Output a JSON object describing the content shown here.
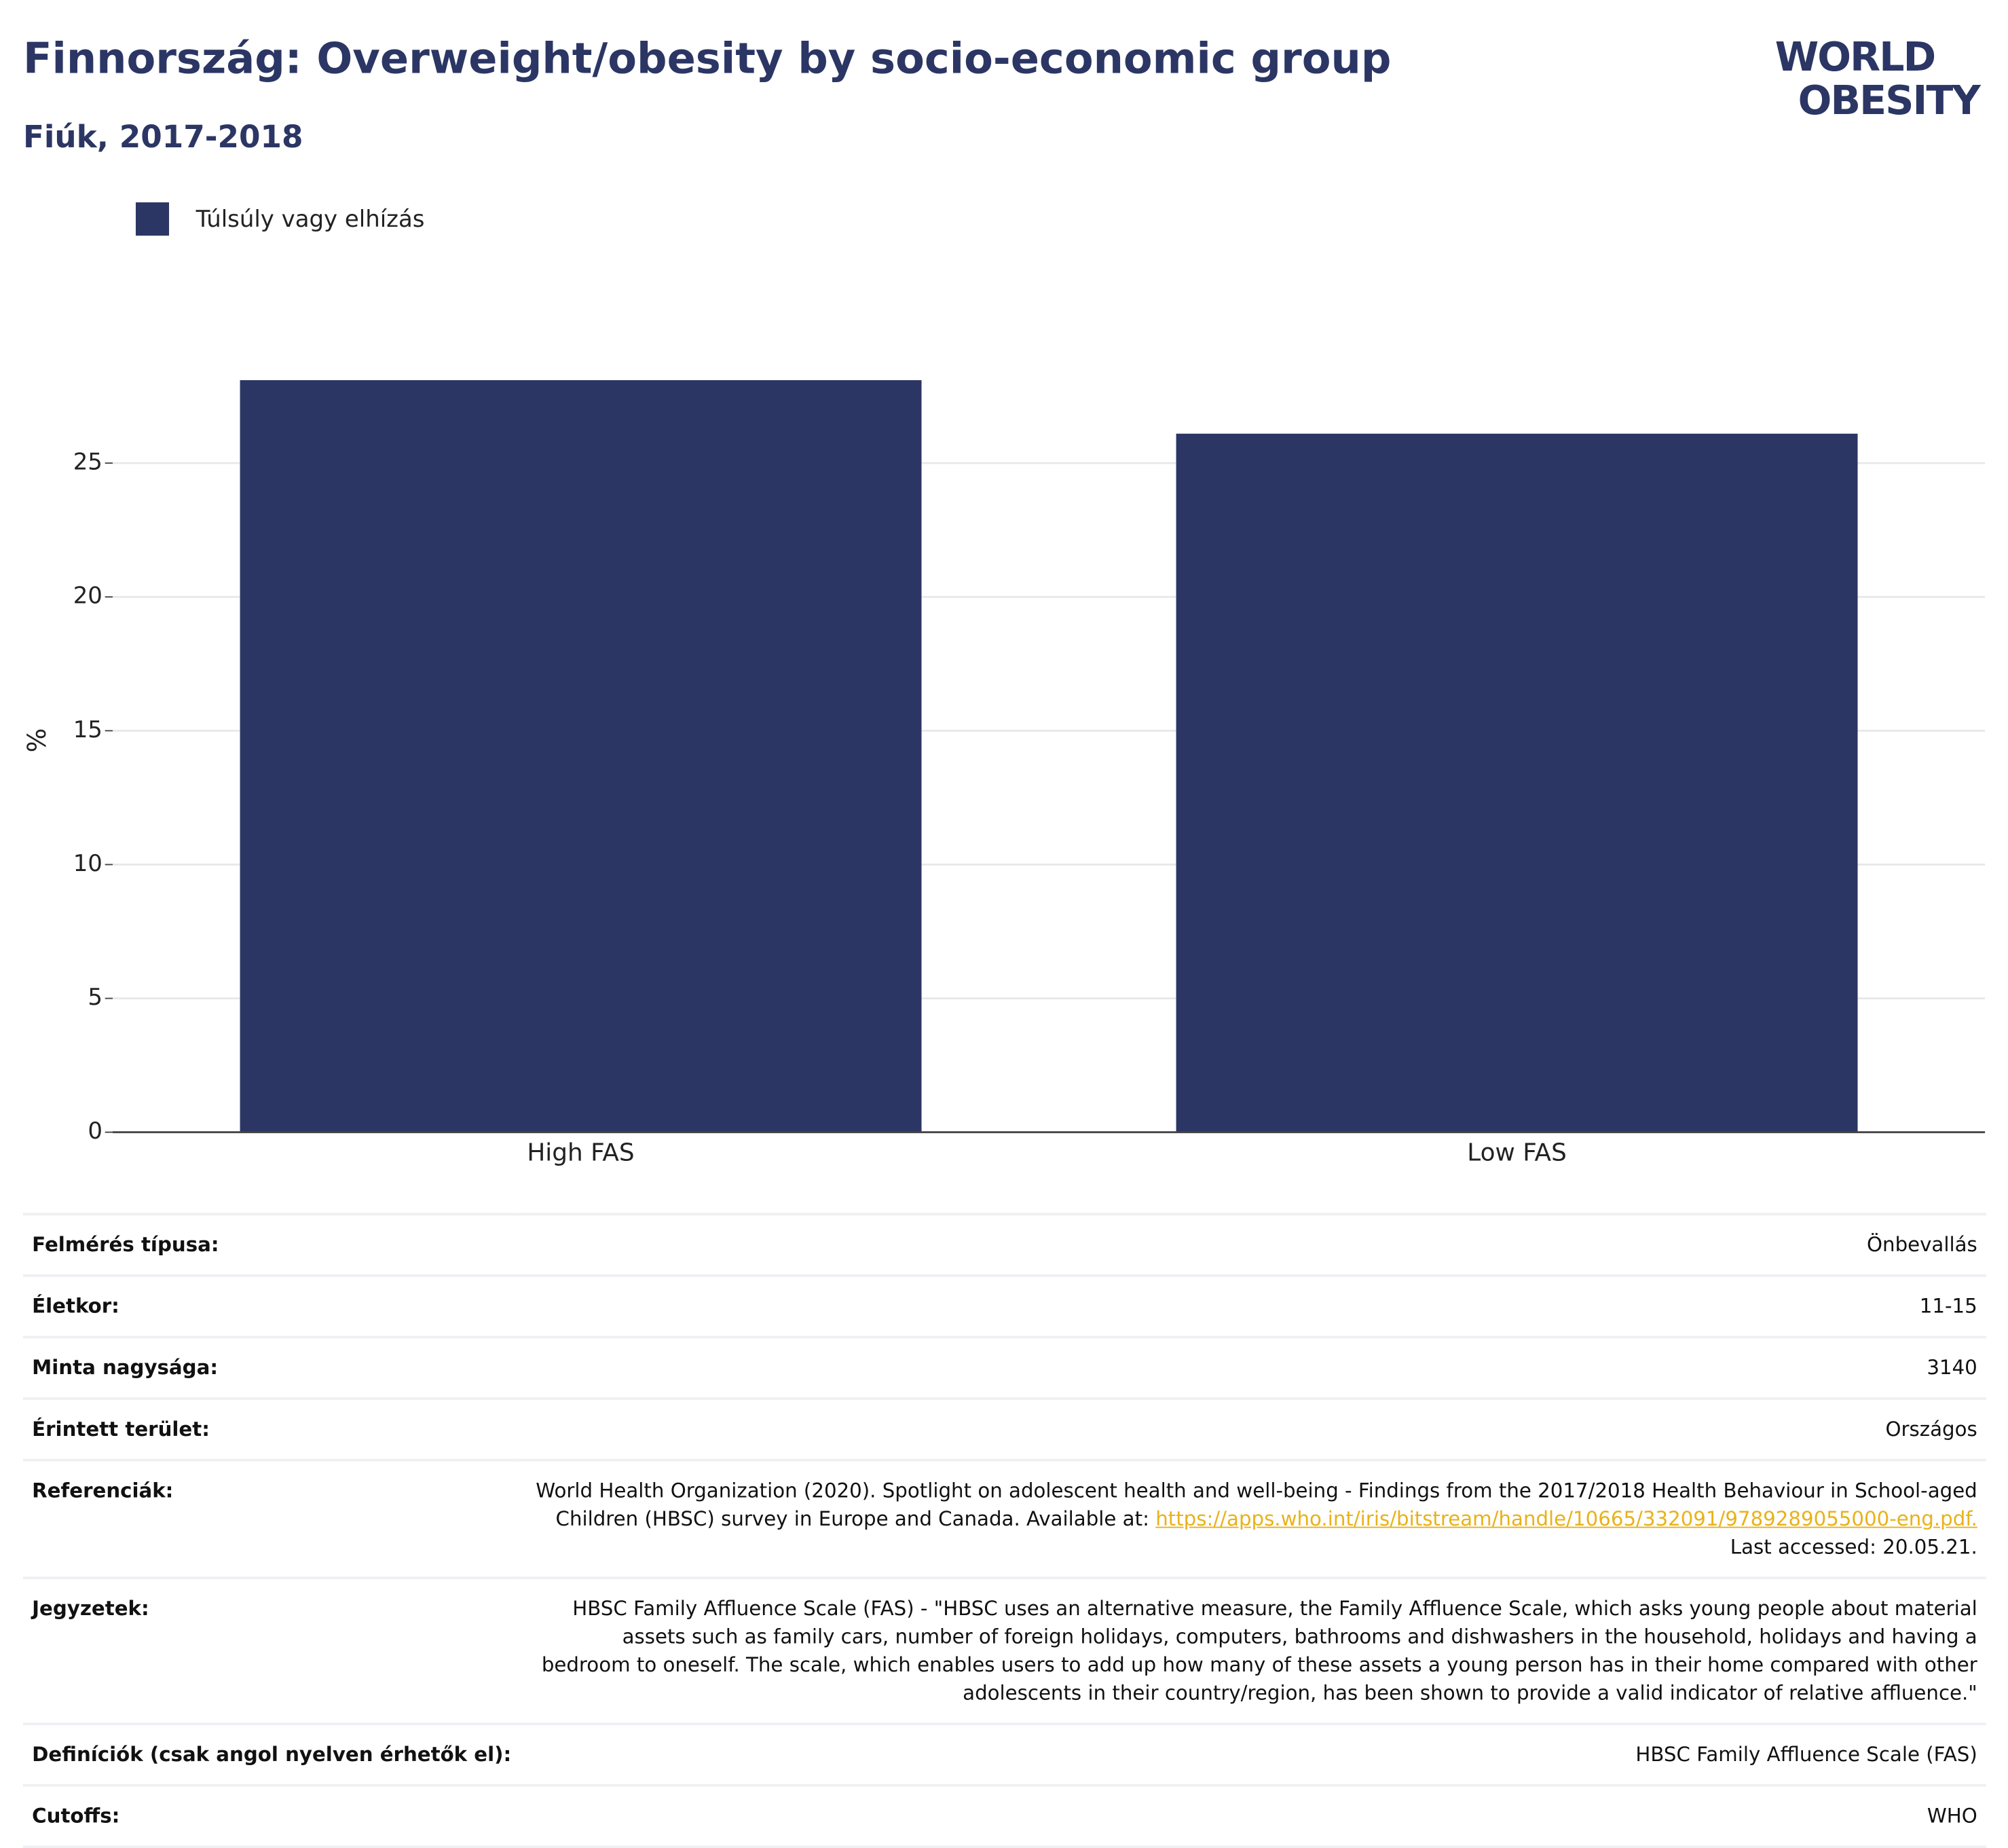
{
  "header": {
    "title": "Finnország: Overweight/obesity by socio-economic group",
    "subtitle": "Fiúk, 2017-2018",
    "logo": [
      "WORLD",
      "OBESITY"
    ]
  },
  "chart_data": {
    "type": "bar",
    "categories": [
      "High FAS",
      "Low FAS"
    ],
    "series": [
      {
        "name": "Túlsúly vagy elhízás",
        "color": "#2b3664",
        "values": [
          28.1,
          26.1
        ]
      }
    ],
    "y_label": "%",
    "ylim": [
      0,
      29
    ],
    "yticks": [
      0,
      5,
      10,
      15,
      20,
      25
    ],
    "grid": true
  },
  "table": {
    "rows": [
      [
        "Felmérés típusa:",
        "Önbevallás"
      ],
      [
        "Életkor:",
        "11-15"
      ],
      [
        "Minta nagysága:",
        "3140"
      ],
      [
        "Érintett terület:",
        "Országos"
      ],
      [
        "Referenciák:",
        [
          "World Health Organization (2020). Spotlight on adolescent health and well-being - Findings from the 2017/2018 Health Behaviour in School-aged Children (HBSC) survey in Europe and Canada. Available at: ",
          "https://apps.who.int/iris/bitstream/handle/10665/332091/9789289055000-eng.pdf.",
          " Last accessed: 20.05.21."
        ]
      ],
      [
        "Jegyzetek:",
        "HBSC Family Affluence Scale (FAS) - \"HBSC uses an alternative measure, the Family Affluence Scale, which asks young people about material assets such as family cars, number of foreign holidays, computers, bathrooms and dishwashers in the household, holidays and having a bedroom to oneself. The scale, which enables users to add up how many of these assets a young person has in their home compared with other adolescents in their country/region, has been shown to provide a valid indicator of relative affluence.\""
      ],
      [
        "Definíciók (csak angol nyelven érhetők el):",
        "HBSC Family Affluence Scale (FAS)"
      ],
      [
        "Cutoffs:",
        "WHO"
      ]
    ]
  }
}
